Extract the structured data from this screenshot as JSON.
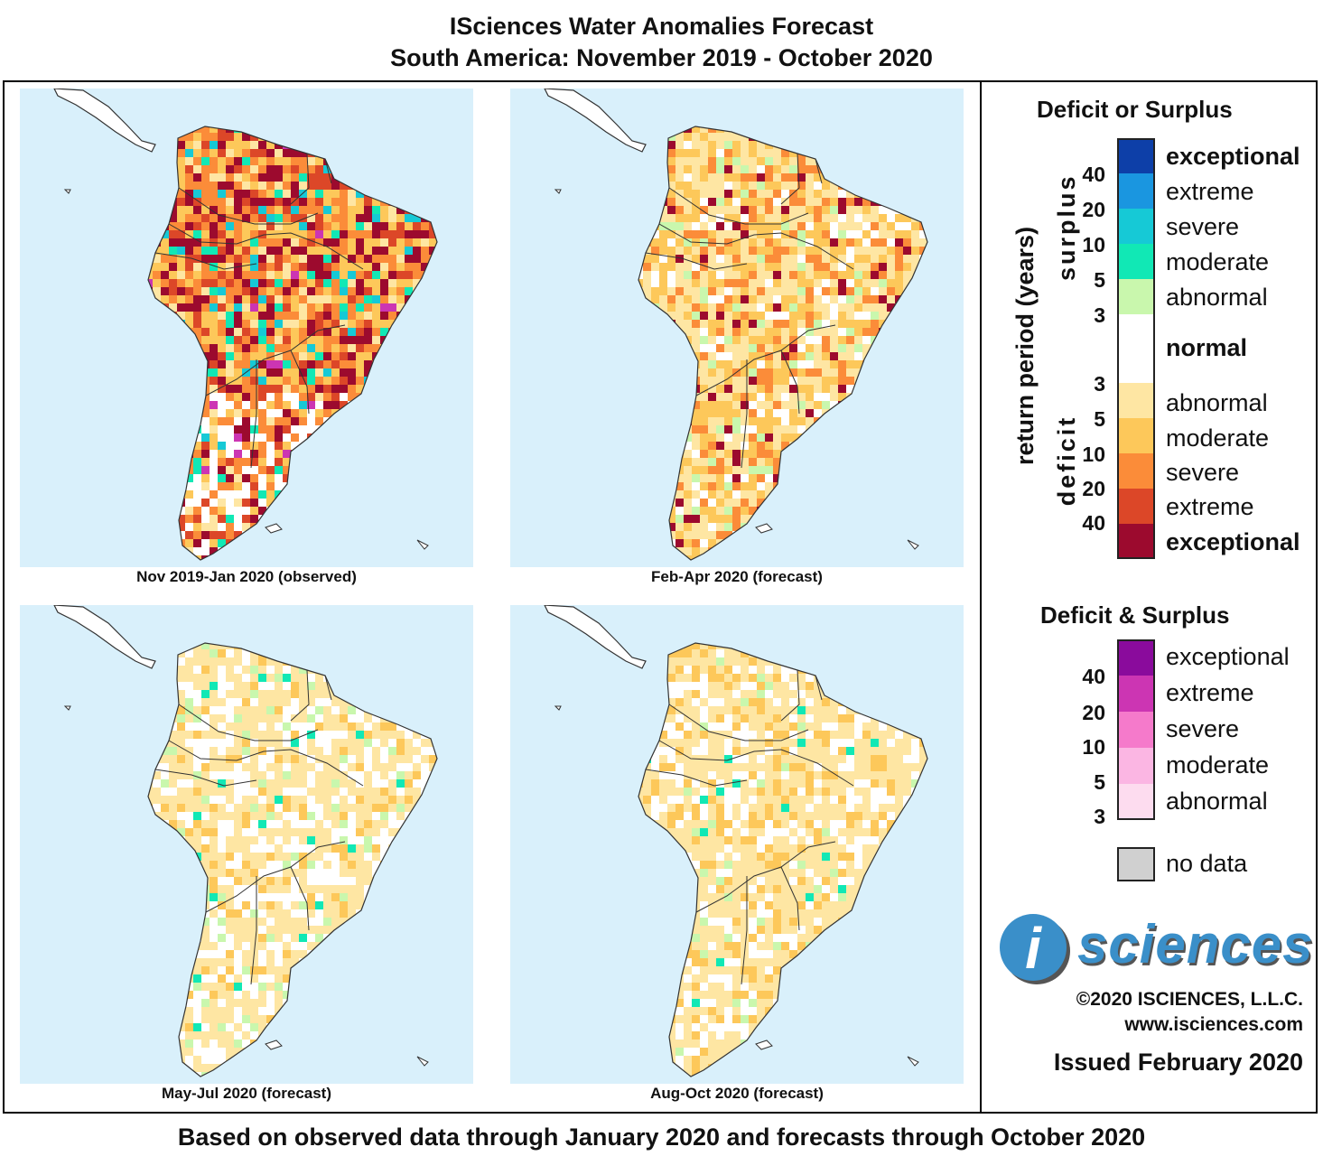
{
  "header": {
    "title": "ISciences Water Anomalies Forecast",
    "subtitle": "South America: November 2019 - October 2020"
  },
  "maps": [
    {
      "label": "Nov 2019-Jan 2020 (observed)"
    },
    {
      "label": "Feb-Apr 2020 (forecast)"
    },
    {
      "label": "May-Jul 2020 (forecast)"
    },
    {
      "label": "Aug-Oct 2020 (forecast)"
    }
  ],
  "legend": {
    "deficit_or_surplus_title": "Deficit or Surplus",
    "axis_label": "return period (years)",
    "surplus_label": "surplus",
    "deficit_label": "deficit",
    "surplus_categories": [
      {
        "label": "exceptional",
        "color": "#0d3fa8"
      },
      {
        "label": "extreme",
        "color": "#1a96e0"
      },
      {
        "label": "severe",
        "color": "#16c9d6"
      },
      {
        "label": "moderate",
        "color": "#11e8b5"
      },
      {
        "label": "abnormal",
        "color": "#c9f7ad"
      }
    ],
    "surplus_numbers": [
      "40",
      "20",
      "10",
      "5",
      "3"
    ],
    "normal_label": "normal",
    "deficit_numbers": [
      "3",
      "5",
      "10",
      "20",
      "40"
    ],
    "deficit_categories": [
      {
        "label": "abnormal",
        "color": "#fee6a3"
      },
      {
        "label": "moderate",
        "color": "#fdc85a"
      },
      {
        "label": "severe",
        "color": "#fb8c39"
      },
      {
        "label": "extreme",
        "color": "#dc4728"
      },
      {
        "label": "exceptional",
        "color": "#9c0a2e"
      }
    ],
    "both_title": "Deficit & Surplus",
    "both_categories": [
      {
        "label": "exceptional",
        "color": "#8a0b9c"
      },
      {
        "label": "extreme",
        "color": "#cc35b3"
      },
      {
        "label": "severe",
        "color": "#f57acb"
      },
      {
        "label": "moderate",
        "color": "#fbb6e3"
      },
      {
        "label": "abnormal",
        "color": "#fddcef"
      }
    ],
    "both_numbers": [
      "40",
      "20",
      "10",
      "5",
      "3"
    ],
    "nodata_label": "no data"
  },
  "logo": {
    "letter": "i",
    "text": "sciences"
  },
  "info": {
    "copyright": "©2020 ISCIENCES, L.L.C.",
    "url": "www.isciences.com",
    "issued": "Issued February 2020"
  },
  "footer": "Based on observed data through January 2020 and forecasts through October 2020",
  "colors": {
    "ocean": "#d9f0fb",
    "land": "#ffffff",
    "border": "#333333"
  }
}
